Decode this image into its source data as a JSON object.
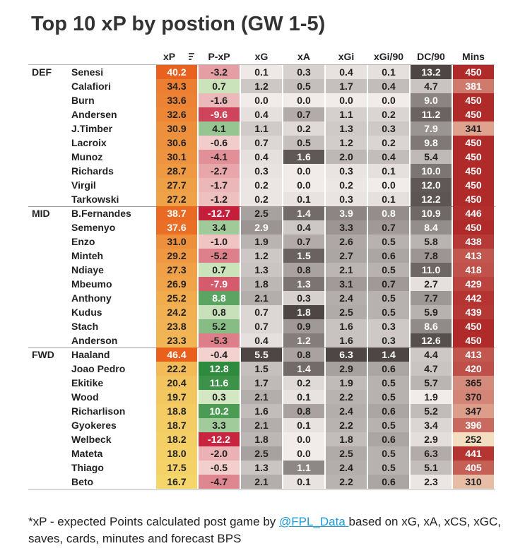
{
  "title": "Top 10 xP by postion (GW 1-5)",
  "columns": [
    "xP",
    "P-xP",
    "xG",
    "xA",
    "xGi",
    "xGi/90",
    "DC/90",
    "Mins"
  ],
  "chart_data": {
    "type": "table",
    "title": "Top 10 xP by postion (GW 1-5)",
    "columns": [
      "xP",
      "P-xP",
      "xG",
      "xA",
      "xGi",
      "xGi/90",
      "DC/90",
      "Mins"
    ],
    "sort_column": "xP",
    "groups": [
      {
        "position": "DEF",
        "rows": [
          {
            "player": "Senesi",
            "values": [
              "40.2",
              "-3.2",
              "0.1",
              "0.3",
              "0.4",
              "0.1",
              "13.2",
              "450"
            ]
          },
          {
            "player": "Calafiori",
            "values": [
              "34.3",
              "0.7",
              "1.2",
              "0.5",
              "1.7",
              "0.4",
              "4.7",
              "381"
            ]
          },
          {
            "player": "Burn",
            "values": [
              "33.6",
              "-1.6",
              "0.0",
              "0.0",
              "0.0",
              "0.0",
              "9.0",
              "450"
            ]
          },
          {
            "player": "Andersen",
            "values": [
              "32.6",
              "-9.6",
              "0.4",
              "0.7",
              "1.1",
              "0.2",
              "11.2",
              "450"
            ]
          },
          {
            "player": "J.Timber",
            "values": [
              "30.9",
              "4.1",
              "1.1",
              "0.2",
              "1.3",
              "0.3",
              "7.9",
              "341"
            ]
          },
          {
            "player": "Lacroix",
            "values": [
              "30.6",
              "-0.6",
              "0.7",
              "0.5",
              "1.2",
              "0.2",
              "9.8",
              "450"
            ]
          },
          {
            "player": "Munoz",
            "values": [
              "30.1",
              "-4.1",
              "0.4",
              "1.6",
              "2.0",
              "0.4",
              "5.4",
              "450"
            ]
          },
          {
            "player": "Richards",
            "values": [
              "28.7",
              "-2.7",
              "0.3",
              "0.0",
              "0.3",
              "0.1",
              "10.0",
              "450"
            ]
          },
          {
            "player": "Virgil",
            "values": [
              "27.7",
              "-1.7",
              "0.2",
              "0.0",
              "0.2",
              "0.0",
              "12.0",
              "450"
            ]
          },
          {
            "player": "Tarkowski",
            "values": [
              "27.2",
              "-1.2",
              "0.2",
              "0.1",
              "0.3",
              "0.1",
              "12.2",
              "450"
            ]
          }
        ]
      },
      {
        "position": "MID",
        "rows": [
          {
            "player": "B.Fernandes",
            "values": [
              "38.7",
              "-12.7",
              "2.5",
              "1.4",
              "3.9",
              "0.8",
              "10.9",
              "446"
            ]
          },
          {
            "player": "Semenyo",
            "values": [
              "37.6",
              "3.4",
              "2.9",
              "0.4",
              "3.3",
              "0.7",
              "8.4",
              "450"
            ]
          },
          {
            "player": "Enzo",
            "values": [
              "31.0",
              "-1.0",
              "1.9",
              "0.7",
              "2.6",
              "0.5",
              "5.8",
              "438"
            ]
          },
          {
            "player": "Minteh",
            "values": [
              "29.2",
              "-5.2",
              "1.2",
              "1.5",
              "2.7",
              "0.6",
              "7.8",
              "413"
            ]
          },
          {
            "player": "Ndiaye",
            "values": [
              "27.3",
              "0.7",
              "1.3",
              "0.8",
              "2.1",
              "0.5",
              "11.0",
              "418"
            ]
          },
          {
            "player": "Mbeumo",
            "values": [
              "26.9",
              "-7.9",
              "1.8",
              "1.3",
              "3.1",
              "0.7",
              "2.7",
              "429"
            ]
          },
          {
            "player": "Anthony",
            "values": [
              "25.2",
              "8.8",
              "2.1",
              "0.3",
              "2.4",
              "0.5",
              "7.7",
              "442"
            ]
          },
          {
            "player": "Kudus",
            "values": [
              "24.2",
              "0.8",
              "0.7",
              "1.8",
              "2.5",
              "0.5",
              "5.9",
              "439"
            ]
          },
          {
            "player": "Stach",
            "values": [
              "23.8",
              "5.2",
              "0.7",
              "0.9",
              "1.6",
              "0.3",
              "8.6",
              "450"
            ]
          },
          {
            "player": "Anderson",
            "values": [
              "23.3",
              "-5.3",
              "0.4",
              "1.2",
              "1.6",
              "0.3",
              "12.6",
              "450"
            ]
          }
        ]
      },
      {
        "position": "FWD",
        "rows": [
          {
            "player": "Haaland",
            "values": [
              "46.4",
              "-0.4",
              "5.5",
              "0.8",
              "6.3",
              "1.4",
              "4.4",
              "413"
            ]
          },
          {
            "player": "Joao Pedro",
            "values": [
              "22.2",
              "12.8",
              "1.5",
              "1.4",
              "2.9",
              "0.6",
              "4.7",
              "420"
            ]
          },
          {
            "player": "Ekitike",
            "values": [
              "20.4",
              "11.6",
              "1.7",
              "0.2",
              "1.9",
              "0.5",
              "5.7",
              "365"
            ]
          },
          {
            "player": "Wood",
            "values": [
              "19.7",
              "0.3",
              "2.1",
              "0.1",
              "2.2",
              "0.5",
              "1.9",
              "370"
            ]
          },
          {
            "player": "Richarlison",
            "values": [
              "18.8",
              "10.2",
              "1.6",
              "0.8",
              "2.4",
              "0.6",
              "5.2",
              "347"
            ]
          },
          {
            "player": "Gyokeres",
            "values": [
              "18.7",
              "3.3",
              "2.1",
              "0.1",
              "2.2",
              "0.5",
              "3.4",
              "396"
            ]
          },
          {
            "player": "Welbeck",
            "values": [
              "18.2",
              "-12.2",
              "1.8",
              "0.0",
              "1.8",
              "0.6",
              "2.9",
              "252"
            ]
          },
          {
            "player": "Mateta",
            "values": [
              "18.0",
              "-2.0",
              "2.5",
              "0.0",
              "2.5",
              "0.5",
              "6.3",
              "441"
            ]
          },
          {
            "player": "Thiago",
            "values": [
              "17.5",
              "-0.5",
              "1.3",
              "1.1",
              "2.4",
              "0.5",
              "5.1",
              "405"
            ]
          },
          {
            "player": "Beto",
            "values": [
              "16.7",
              "-4.7",
              "2.1",
              "0.1",
              "2.2",
              "0.6",
              "2.3",
              "310"
            ]
          }
        ]
      }
    ]
  },
  "footnote": {
    "before": "*xP - expected Points calculated post game by ",
    "link": "@FPL_Data ",
    "after": "based on xG, xA, xCS, xGC, saves, cards, minutes and forecast BPS"
  },
  "colors": {
    "xp_low": "#f5d66a",
    "xp_high": "#e9601d",
    "pxp_neg": "#c41e3a",
    "pxp_pos": "#2e8b3d",
    "gray_low": "#f1ecea",
    "gray_high": "#4e4645",
    "mins_low": "#f4dec1",
    "mins_high": "#b12a2a",
    "link": "#1a9bd7"
  }
}
